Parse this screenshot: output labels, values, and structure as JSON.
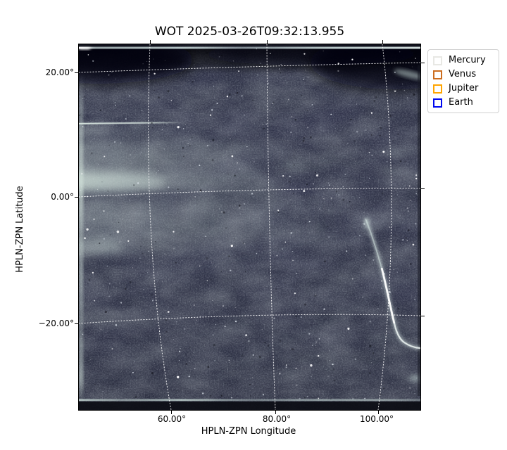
{
  "figure": {
    "title": "WOT 2025-03-26T09:32:13.955"
  },
  "axes": {
    "xlabel": "HPLN-ZPN Longitude",
    "ylabel": "HPLN-ZPN Latitude",
    "x_tick_labels": [
      "60.00°",
      "80.00°",
      "100.00°"
    ],
    "y_tick_labels": [
      "20.00°",
      "0.00°",
      "−20.00°"
    ]
  },
  "legend": {
    "entries": [
      {
        "label": "Mercury",
        "color": "#e8e8e4",
        "marker": "square-outline"
      },
      {
        "label": "Venus",
        "color": "#cc6d1f",
        "marker": "square-outline"
      },
      {
        "label": "Jupiter",
        "color": "#ffa500",
        "marker": "square-outline"
      },
      {
        "label": "Earth",
        "color": "#0008f0",
        "marker": "square-outline"
      }
    ]
  },
  "chart_data": {
    "type": "heatmap",
    "title": "WOT 2025-03-26T09:32:13.955",
    "xlabel": "HPLN-ZPN Longitude",
    "ylabel": "HPLN-ZPN Latitude",
    "x_ticks_deg": [
      60,
      80,
      100
    ],
    "y_ticks_deg": [
      20,
      0,
      -20
    ],
    "xlim_deg_approx": [
      44,
      108
    ],
    "ylim_deg_approx": [
      -33,
      25
    ],
    "grid": true,
    "grid_style": "white dotted curvilinear WCS graticule (ZPN projection)",
    "legend_position": "upper right, outside axes",
    "legend_entries": [
      "Mercury",
      "Venus",
      "Jupiter",
      "Earth"
    ],
    "image_description": "Dark slate-blue heliospheric imager frame with fine star-speckle noise; diffuse pale horizontal streamer bands on the left half near 0-10 deg latitude; a thin bright horizontal streak near 12 deg latitude from the left edge to ~62 deg longitude; a bright curved saturation streak near 100 deg longitude running from ~-5 deg latitude down and curling right to the frame edge near -25 deg latitude; bright vignetted top/bottom/left edges and very dark upper corners; no planet markers visible inside the frame."
  }
}
